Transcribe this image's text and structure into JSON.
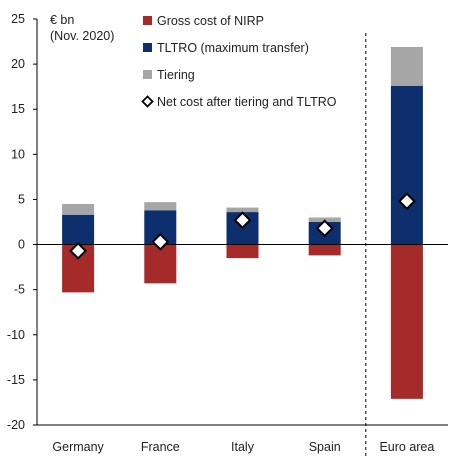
{
  "chart_data": {
    "type": "bar",
    "stacked": true,
    "unit_label": [
      "€ bn",
      "(Nov. 2020)"
    ],
    "categories": [
      "Germany",
      "France",
      "Italy",
      "Spain",
      "Euro area"
    ],
    "ylim": [
      -20,
      25
    ],
    "yticks": [
      25,
      20,
      15,
      10,
      5,
      0,
      -5,
      -10,
      -15,
      -20
    ],
    "ytick_labels": [
      "25",
      "20",
      "15",
      "10",
      "5",
      "0",
      "-5",
      "-10",
      "-15",
      "-20"
    ],
    "grid": false,
    "legend_position": "top-left",
    "separator_before_category": "Euro area",
    "series": [
      {
        "name": "Gross cost of NIRP",
        "color": "#a52a2a",
        "mark": "bar",
        "values": [
          -5.3,
          -4.3,
          -1.5,
          -1.2,
          -17.1
        ]
      },
      {
        "name": "TLTRO (maximum transfer)",
        "color": "#0e2f6e",
        "mark": "bar",
        "values": [
          3.3,
          3.8,
          3.6,
          2.5,
          17.6
        ]
      },
      {
        "name": "Tiering",
        "color": "#a6a6a6",
        "mark": "bar",
        "values": [
          1.2,
          0.9,
          0.5,
          0.5,
          4.3
        ]
      },
      {
        "name": "Net cost after tiering and TLTRO",
        "color": "#ffffff",
        "mark": "diamond",
        "values": [
          -0.7,
          0.3,
          2.7,
          1.8,
          4.8
        ]
      }
    ]
  }
}
